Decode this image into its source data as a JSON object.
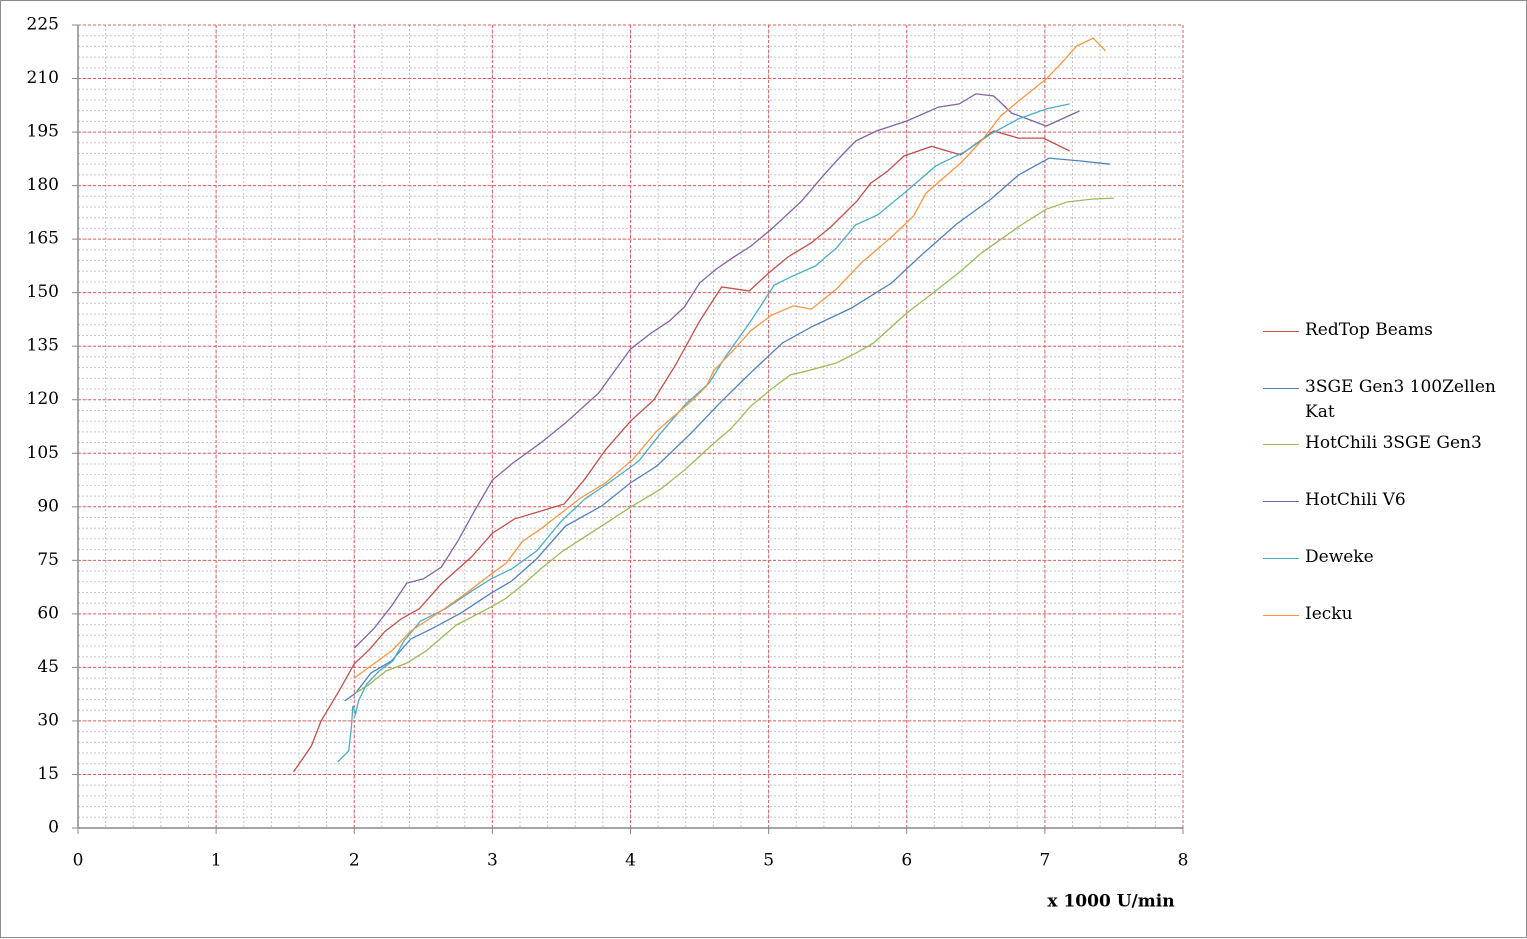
{
  "chart_data": {
    "type": "line",
    "x_label": "x 1000 U/min",
    "xlim": [
      0,
      8
    ],
    "xticks": [
      0,
      1,
      2,
      3,
      4,
      5,
      6,
      7,
      8
    ],
    "ylim": [
      0,
      225
    ],
    "yticks": [
      0,
      15,
      30,
      45,
      60,
      75,
      90,
      105,
      120,
      135,
      150,
      165,
      180,
      195,
      210,
      225
    ],
    "grid": true,
    "minor_grid": {
      "x": 0.2,
      "y": 3
    },
    "legend": "right",
    "series": [
      {
        "name": "RedTop Beams",
        "color": "#c0504d",
        "x": [
          1.56,
          1.69,
          1.76,
          1.89,
          2.0,
          2.11,
          2.22,
          2.34,
          2.47,
          2.63,
          2.85,
          3.0,
          3.16,
          3.35,
          3.52,
          3.67,
          3.82,
          4.0,
          4.17,
          4.33,
          4.5,
          4.66,
          4.86,
          5.0,
          5.14,
          5.31,
          5.45,
          5.64,
          5.74,
          5.86,
          5.98,
          6.18,
          6.39,
          6.63,
          6.81,
          6.99,
          7.18
        ],
        "values": [
          15.7,
          23,
          30,
          38.4,
          46,
          50,
          55,
          58.6,
          61.4,
          68.4,
          76,
          82.6,
          86.6,
          88.8,
          90.8,
          97.8,
          106,
          114,
          120,
          130,
          142,
          151.6,
          150.5,
          155.5,
          160,
          164,
          168.4,
          175.7,
          180.7,
          184,
          188.3,
          191,
          188.6,
          195.3,
          193.3,
          193.3,
          189.7
        ]
      },
      {
        "name": "3SGE Gen3 100Zellen Kat",
        "color": "#4f81bd",
        "x": [
          1.93,
          2.01,
          2.12,
          2.27,
          2.41,
          2.56,
          2.77,
          2.99,
          3.14,
          3.32,
          3.53,
          3.79,
          4.0,
          4.19,
          4.44,
          4.66,
          4.86,
          5.1,
          5.31,
          5.6,
          5.89,
          6.1,
          6.36,
          6.61,
          6.81,
          7.03,
          7.26,
          7.47
        ],
        "values": [
          35.6,
          37.8,
          43.4,
          46.8,
          53,
          55.8,
          60.2,
          65.8,
          69.2,
          75.4,
          84.6,
          90.2,
          96.7,
          101.4,
          110.7,
          119.6,
          127.2,
          135.9,
          140.4,
          145.7,
          152.7,
          160.3,
          169.2,
          176.2,
          183,
          187.7,
          186.9,
          186
        ]
      },
      {
        "name": "HotChili 3SGE Gen3",
        "color": "#9bbb59",
        "x": [
          2.01,
          2.11,
          2.23,
          2.38,
          2.52,
          2.74,
          2.99,
          3.1,
          3.21,
          3.35,
          3.51,
          3.79,
          4.0,
          4.22,
          4.4,
          4.58,
          4.73,
          4.87,
          5.02,
          5.16,
          5.27,
          5.49,
          5.63,
          5.76,
          6.0,
          6.21,
          6.39,
          6.54,
          6.83,
          7.01,
          7.16,
          7.34,
          7.5
        ],
        "values": [
          37.8,
          40.3,
          44,
          46.2,
          49.6,
          56.9,
          61.9,
          64.4,
          67.8,
          72.6,
          77.6,
          84.6,
          89.9,
          95,
          100.6,
          107,
          112,
          118.2,
          123,
          127,
          128,
          130.3,
          133,
          135.9,
          144.3,
          150.5,
          156,
          161.1,
          169,
          173.4,
          175.4,
          176.2,
          176.5
        ]
      },
      {
        "name": "HotChili V6",
        "color": "#8064a2",
        "x": [
          2.0,
          2.14,
          2.27,
          2.38,
          2.5,
          2.63,
          2.75,
          2.87,
          3.0,
          3.15,
          3.35,
          3.53,
          3.77,
          4.0,
          4.15,
          4.28,
          4.39,
          4.5,
          4.62,
          4.76,
          4.87,
          5.02,
          5.24,
          5.38,
          5.51,
          5.63,
          5.78,
          6.0,
          6.23,
          6.38,
          6.5,
          6.63,
          6.76,
          7.01,
          7.25
        ],
        "values": [
          50.4,
          55.8,
          62.2,
          68.6,
          69.8,
          73.1,
          80.4,
          88.8,
          97.5,
          102.3,
          107.9,
          113.5,
          121.9,
          134.2,
          138.7,
          142,
          146,
          152.7,
          156.6,
          160.3,
          163,
          167.8,
          175.7,
          182.1,
          187.7,
          192.5,
          195.3,
          198.1,
          202,
          202.9,
          205.7,
          205.1,
          200.3,
          196.7,
          200.9
        ]
      },
      {
        "name": "Deweke",
        "color": "#4bacc6",
        "x": [
          1.88,
          1.96,
          1.98,
          1.99,
          2.01,
          2.03,
          2.09,
          2.18,
          2.28,
          2.36,
          2.48,
          2.66,
          2.85,
          2.99,
          3.14,
          3.32,
          3.5,
          3.67,
          3.86,
          4.06,
          4.22,
          4.4,
          4.57,
          4.69,
          4.87,
          5.04,
          5.16,
          5.34,
          5.49,
          5.63,
          5.79,
          6.0,
          6.21,
          6.43,
          6.61,
          6.81,
          7.01,
          7.18
        ],
        "values": [
          18.5,
          21.6,
          28.6,
          34.2,
          31.9,
          35.6,
          40.3,
          44,
          46.8,
          52.4,
          58,
          61.4,
          66.4,
          69.8,
          72.6,
          77.6,
          86,
          92.2,
          97.2,
          102.8,
          110.7,
          118.8,
          124.7,
          132.2,
          142,
          152.1,
          154.4,
          157.5,
          162.5,
          169,
          171.8,
          178.5,
          185.5,
          189.7,
          194.5,
          198.7,
          201.5,
          202.9
        ]
      },
      {
        "name": "Iecku",
        "color": "#f79646",
        "x": [
          2.0,
          2.12,
          2.27,
          2.41,
          2.63,
          2.81,
          3.0,
          3.1,
          3.22,
          3.35,
          3.5,
          3.64,
          3.82,
          4.02,
          4.19,
          4.44,
          4.55,
          4.6,
          4.76,
          4.87,
          5.02,
          5.18,
          5.31,
          5.49,
          5.67,
          5.89,
          6.05,
          6.14,
          6.39,
          6.54,
          6.68,
          6.81,
          7.01,
          7.12,
          7.23,
          7.35,
          7.44
        ],
        "values": [
          42,
          45.4,
          49.6,
          55.2,
          60.8,
          65.8,
          71.4,
          74.2,
          80.4,
          83.8,
          88.3,
          92.5,
          96.7,
          103.4,
          111.2,
          119.6,
          123.8,
          128,
          134.5,
          139.3,
          143.7,
          146.3,
          145.4,
          151,
          158.3,
          165.6,
          171.5,
          177.9,
          186.3,
          192.5,
          199.5,
          203.7,
          209.9,
          214.3,
          219.1,
          221.3,
          217.7
        ]
      }
    ]
  }
}
